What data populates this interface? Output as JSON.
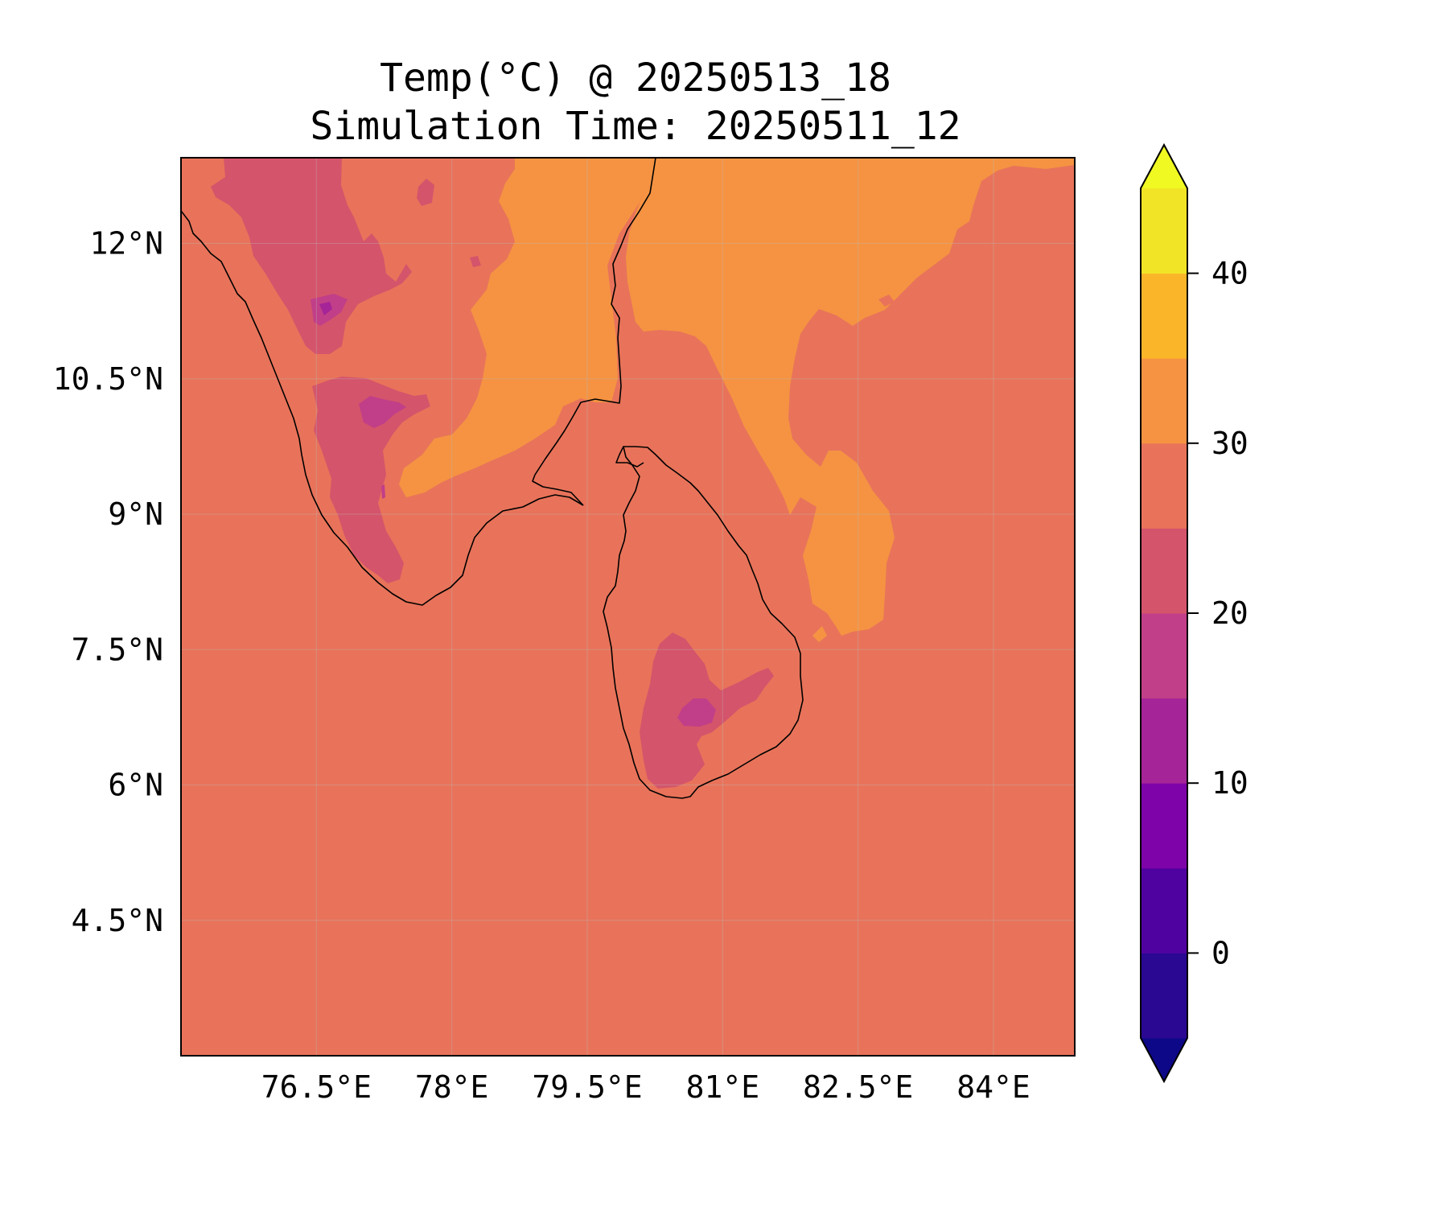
{
  "figure": {
    "title_line1": "Temp(°C) @ 20250513_18",
    "title_line2": "Simulation Time: 20250511_12"
  },
  "map": {
    "region": "Southern India and Sri Lanka",
    "lon_range": [
      75.0,
      84.9
    ],
    "lat_range": [
      3.0,
      12.95
    ],
    "lon_ticks": [
      {
        "value": 76.5,
        "label": "76.5°E"
      },
      {
        "value": 78.0,
        "label": "78°E"
      },
      {
        "value": 79.5,
        "label": "79.5°E"
      },
      {
        "value": 81.0,
        "label": "81°E"
      },
      {
        "value": 82.5,
        "label": "82.5°E"
      },
      {
        "value": 84.0,
        "label": "84°E"
      }
    ],
    "lat_ticks": [
      {
        "value": 12.0,
        "label": "12°N"
      },
      {
        "value": 10.5,
        "label": "10.5°N"
      },
      {
        "value": 9.0,
        "label": "9°N"
      },
      {
        "value": 7.5,
        "label": "7.5°N"
      },
      {
        "value": 6.0,
        "label": "6°N"
      },
      {
        "value": 4.5,
        "label": "4.5°N"
      }
    ],
    "grid": true,
    "background_bin": "25-30 °C (sea and most land)",
    "colors": {
      "bin_25_30": "#e8735a",
      "bin_30_35": "#f59342",
      "bin_20_25": "#d4546b",
      "bin_15_20": "#c13f88",
      "bin_10_15": "#a52497",
      "coastline": "#000000"
    }
  },
  "colorbar": {
    "cmap": "plasma",
    "min": -5,
    "max": 45,
    "step": 5,
    "extend": "both",
    "ticks": [
      {
        "value": 0,
        "label": "0"
      },
      {
        "value": 10,
        "label": "10"
      },
      {
        "value": 20,
        "label": "20"
      },
      {
        "value": 30,
        "label": "30"
      },
      {
        "value": 40,
        "label": "40"
      }
    ],
    "bins": [
      {
        "from": -5,
        "to": 0,
        "color": "#2a0892"
      },
      {
        "from": 0,
        "to": 5,
        "color": "#5002a1"
      },
      {
        "from": 5,
        "to": 10,
        "color": "#7e03a8"
      },
      {
        "from": 10,
        "to": 15,
        "color": "#a52497"
      },
      {
        "from": 15,
        "to": 20,
        "color": "#c13f88"
      },
      {
        "from": 20,
        "to": 25,
        "color": "#d4546b"
      },
      {
        "from": 25,
        "to": 30,
        "color": "#e8735a"
      },
      {
        "from": 30,
        "to": 35,
        "color": "#f59342"
      },
      {
        "from": 35,
        "to": 40,
        "color": "#fbb529"
      },
      {
        "from": 40,
        "to": 45,
        "color": "#f1e427"
      }
    ],
    "under_color": "#0d0887",
    "over_color": "#f0f921"
  }
}
